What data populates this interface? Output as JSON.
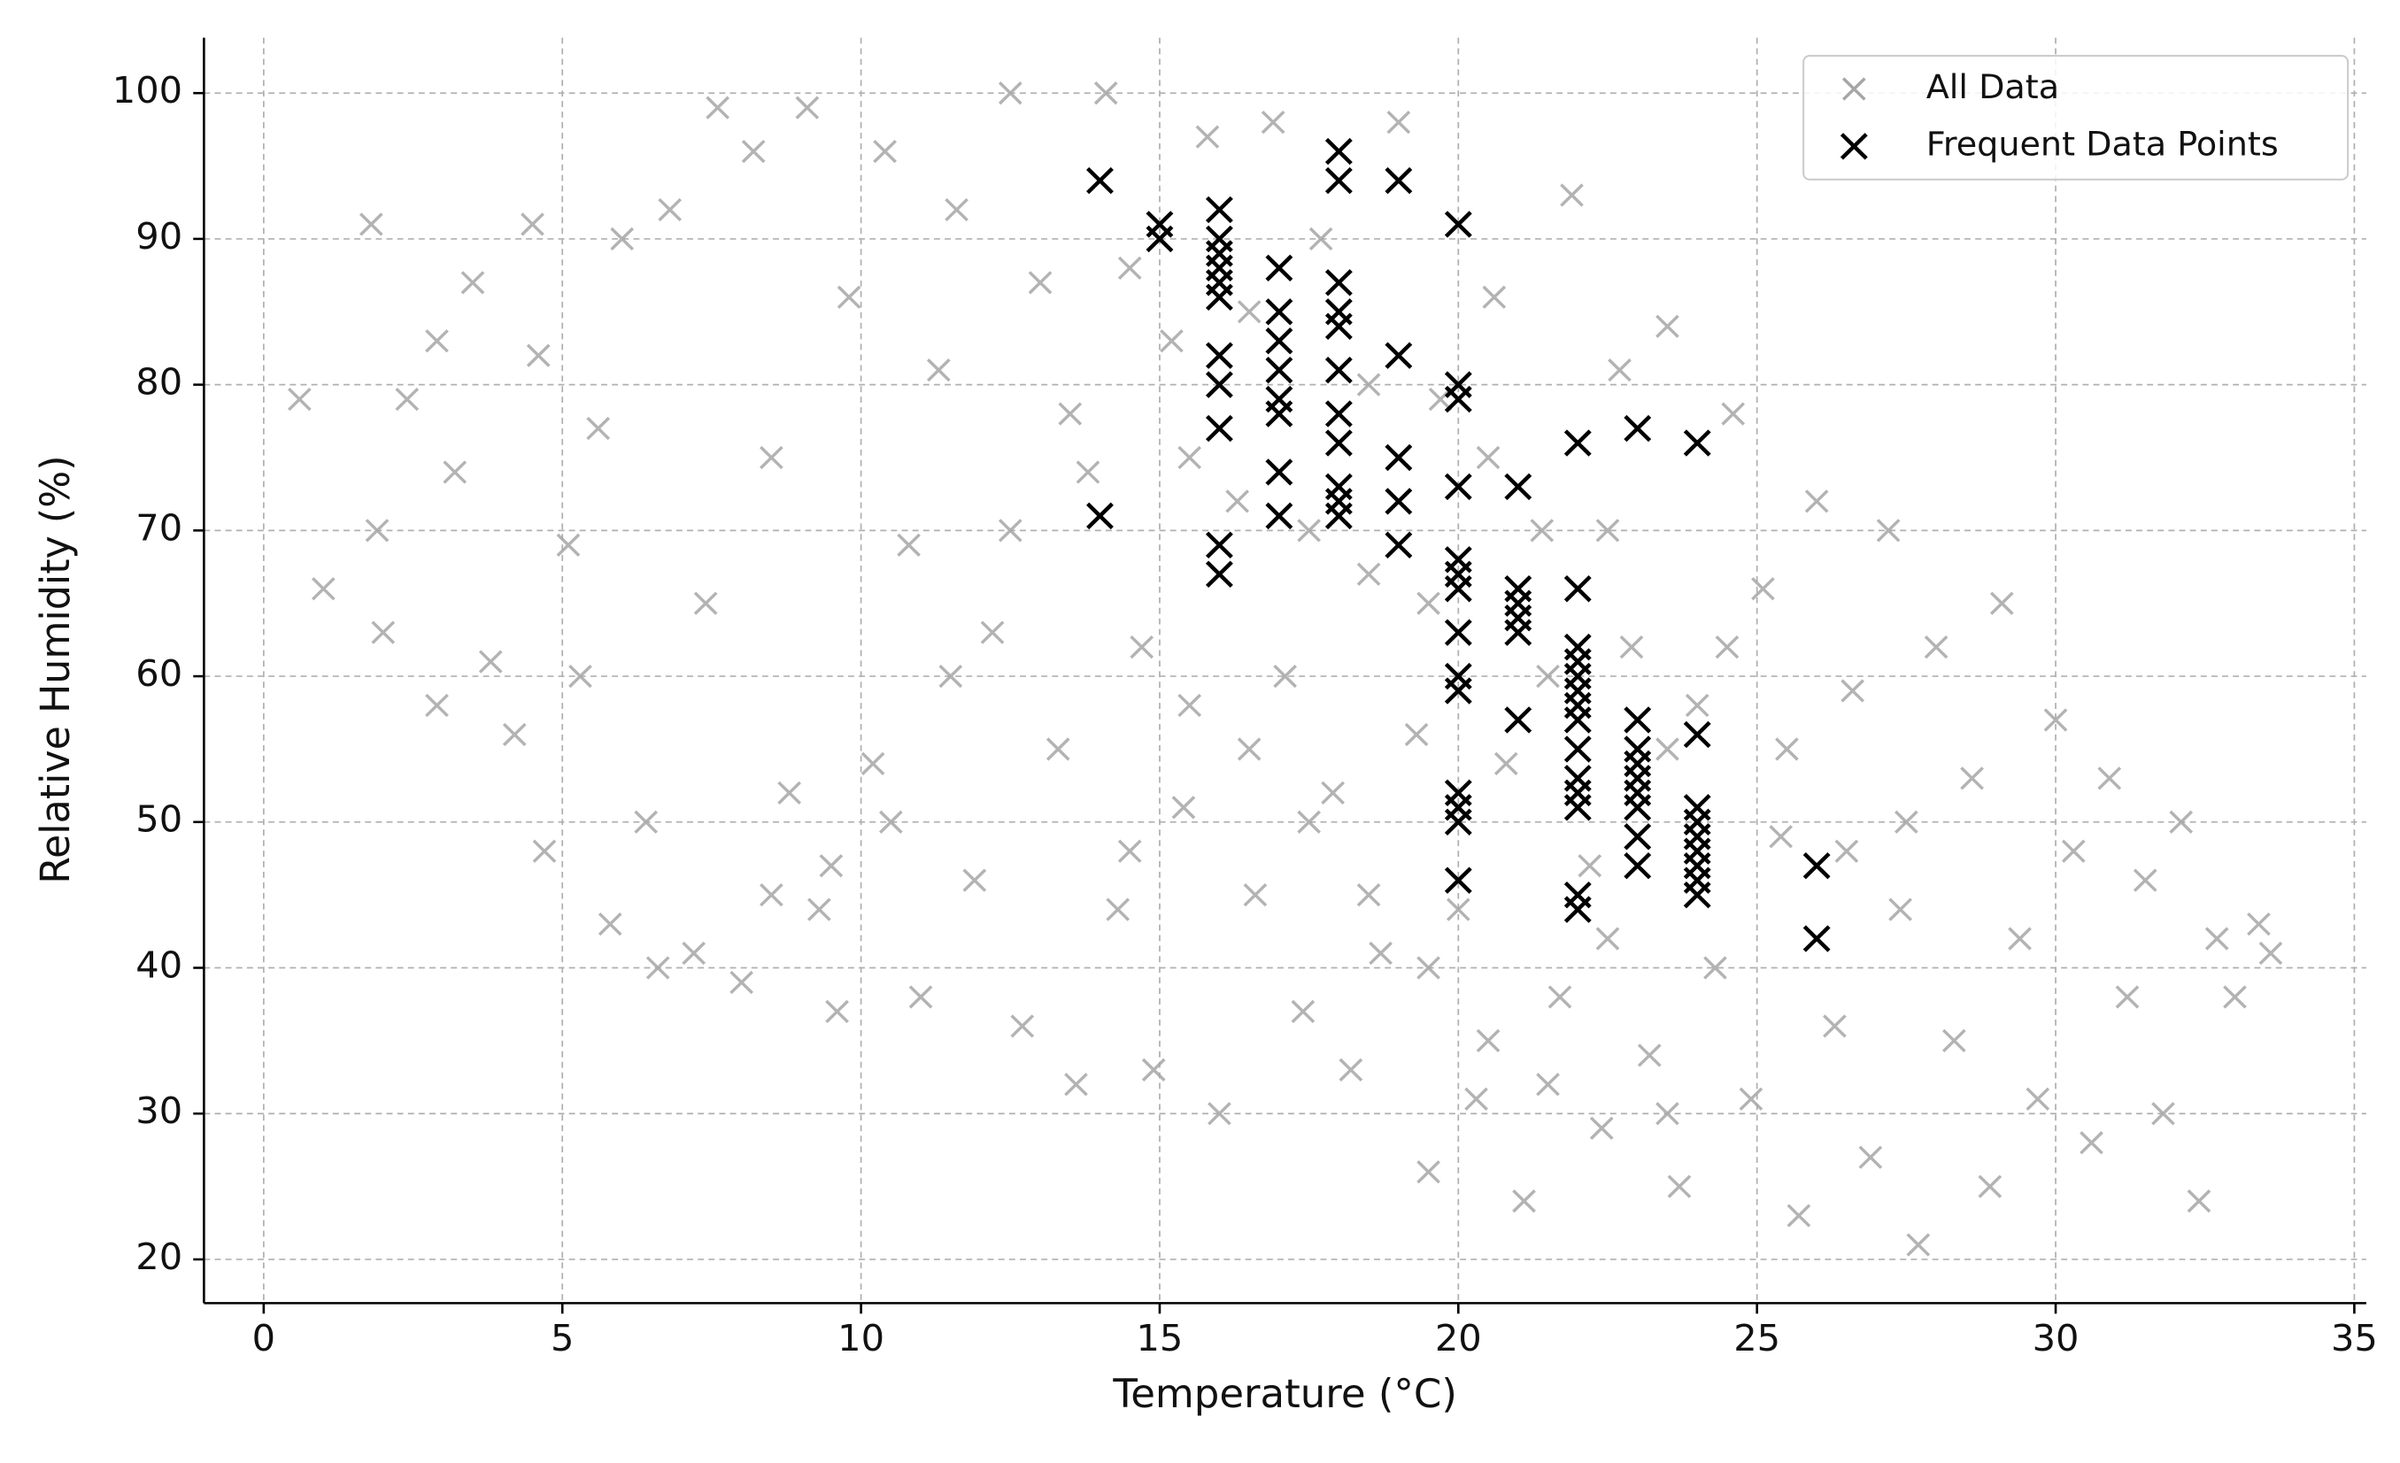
{
  "chart_data": {
    "type": "scatter",
    "xlabel": "Temperature (°C)",
    "ylabel": "Relative Humidity (%)",
    "xlim": [
      -1,
      35.2
    ],
    "ylim": [
      17,
      103.8
    ],
    "xticks": [
      0,
      5,
      10,
      15,
      20,
      25,
      30,
      35
    ],
    "yticks": [
      20,
      30,
      40,
      50,
      60,
      70,
      80,
      90,
      100
    ],
    "grid": true,
    "legend": "upper right",
    "series": [
      {
        "name": "All Data",
        "color": "#a6a6a6",
        "x": [
          0.6,
          1.0,
          1.8,
          1.9,
          2.0,
          2.4,
          2.9,
          2.9,
          3.2,
          3.5,
          3.8,
          4.2,
          4.5,
          4.6,
          4.7,
          5.1,
          5.3,
          5.6,
          5.8,
          6.0,
          6.4,
          6.6,
          6.8,
          7.2,
          7.4,
          7.6,
          8.0,
          8.2,
          8.5,
          8.8,
          9.1,
          9.3,
          9.6,
          9.8,
          10.2,
          10.4,
          10.8,
          11.0,
          11.3,
          11.6,
          11.9,
          12.2,
          12.5,
          12.7,
          13.0,
          13.3,
          13.6,
          13.8,
          14.1,
          14.3,
          14.7,
          14.9,
          15.2,
          15.4,
          15.8,
          16.0,
          16.3,
          16.6,
          16.9,
          17.1,
          17.4,
          17.7,
          17.9,
          18.2,
          18.5,
          18.7,
          19.0,
          19.3,
          19.5,
          19.7,
          20.0,
          20.3,
          20.6,
          20.8,
          21.1,
          21.4,
          21.7,
          21.9,
          22.2,
          22.4,
          22.7,
          22.9,
          23.2,
          23.5,
          23.7,
          24.0,
          24.3,
          24.6,
          24.9,
          25.1,
          25.4,
          25.7,
          26.0,
          26.3,
          26.6,
          26.9,
          27.2,
          27.4,
          27.7,
          28.0,
          28.3,
          28.6,
          28.9,
          29.1,
          29.4,
          29.7,
          30.0,
          30.3,
          30.6,
          30.9,
          31.2,
          31.5,
          31.8,
          32.1,
          32.4,
          32.7,
          33.0,
          33.4,
          33.6,
          14.5,
          15.5,
          16.5,
          17.5,
          18.5,
          19.5,
          20.5,
          21.5,
          22.5,
          23.5,
          24.5,
          25.5,
          26.5,
          27.5,
          13.5,
          12.5,
          11.5,
          10.5,
          9.5,
          8.5,
          17.5,
          18.5,
          19.5,
          20.5,
          21.5,
          16.5,
          15.5,
          14.5,
          22.5,
          23.5
        ],
        "y": [
          79,
          66,
          91,
          70,
          63,
          79,
          83,
          58,
          74,
          87,
          61,
          56,
          91,
          82,
          48,
          69,
          60,
          77,
          43,
          90,
          50,
          40,
          92,
          41,
          65,
          99,
          39,
          96,
          75,
          52,
          99,
          44,
          37,
          86,
          54,
          96,
          69,
          38,
          81,
          92,
          46,
          63,
          100,
          36,
          87,
          55,
          32,
          74,
          100,
          44,
          62,
          33,
          83,
          51,
          97,
          30,
          72,
          45,
          98,
          60,
          37,
          90,
          52,
          33,
          67,
          41,
          98,
          56,
          26,
          79,
          44,
          31,
          86,
          54,
          24,
          70,
          38,
          93,
          47,
          29,
          81,
          62,
          34,
          84,
          25,
          58,
          40,
          78,
          31,
          66,
          49,
          23,
          72,
          36,
          59,
          27,
          70,
          44,
          21,
          62,
          35,
          53,
          25,
          65,
          42,
          31,
          57,
          48,
          28,
          53,
          38,
          46,
          30,
          50,
          24,
          42,
          38,
          43,
          41,
          88,
          75,
          85,
          70,
          80,
          65,
          75,
          60,
          70,
          55,
          62,
          55,
          48,
          50,
          78,
          70,
          60,
          50,
          47,
          45,
          50,
          45,
          40,
          35,
          32,
          55,
          58,
          48,
          42,
          30
        ]
      },
      {
        "name": "Frequent Data Points",
        "color": "#000000",
        "x": [
          14,
          14,
          15,
          15,
          16,
          16,
          16,
          16,
          16,
          16,
          16,
          16,
          16,
          16,
          16,
          17,
          17,
          17,
          17,
          17,
          17,
          17,
          17,
          18,
          18,
          18,
          18,
          18,
          18,
          18,
          18,
          18,
          18,
          18,
          19,
          19,
          19,
          19,
          19,
          20,
          20,
          20,
          20,
          20,
          20,
          20,
          20,
          20,
          20,
          20,
          20,
          20,
          20,
          21,
          21,
          21,
          21,
          21,
          21,
          22,
          22,
          22,
          22,
          22,
          22,
          22,
          22,
          22,
          22,
          22,
          22,
          22,
          22,
          23,
          23,
          23,
          23,
          23,
          23,
          23,
          23,
          23,
          24,
          24,
          24,
          24,
          24,
          24,
          24,
          24,
          24,
          26,
          26
        ],
        "y": [
          94,
          71,
          91,
          90,
          92,
          90,
          89,
          88,
          87,
          86,
          82,
          80,
          77,
          69,
          67,
          88,
          85,
          83,
          81,
          79,
          78,
          74,
          71,
          96,
          94,
          87,
          85,
          84,
          81,
          78,
          76,
          73,
          72,
          71,
          94,
          82,
          75,
          72,
          69,
          91,
          80,
          79,
          73,
          68,
          67,
          66,
          63,
          60,
          59,
          52,
          51,
          50,
          46,
          73,
          66,
          65,
          64,
          63,
          57,
          76,
          66,
          62,
          61,
          60,
          59,
          58,
          57,
          55,
          53,
          52,
          51,
          45,
          44,
          77,
          57,
          55,
          54,
          53,
          52,
          51,
          49,
          47,
          76,
          56,
          51,
          50,
          49,
          48,
          47,
          46,
          45,
          47,
          42
        ]
      }
    ]
  }
}
